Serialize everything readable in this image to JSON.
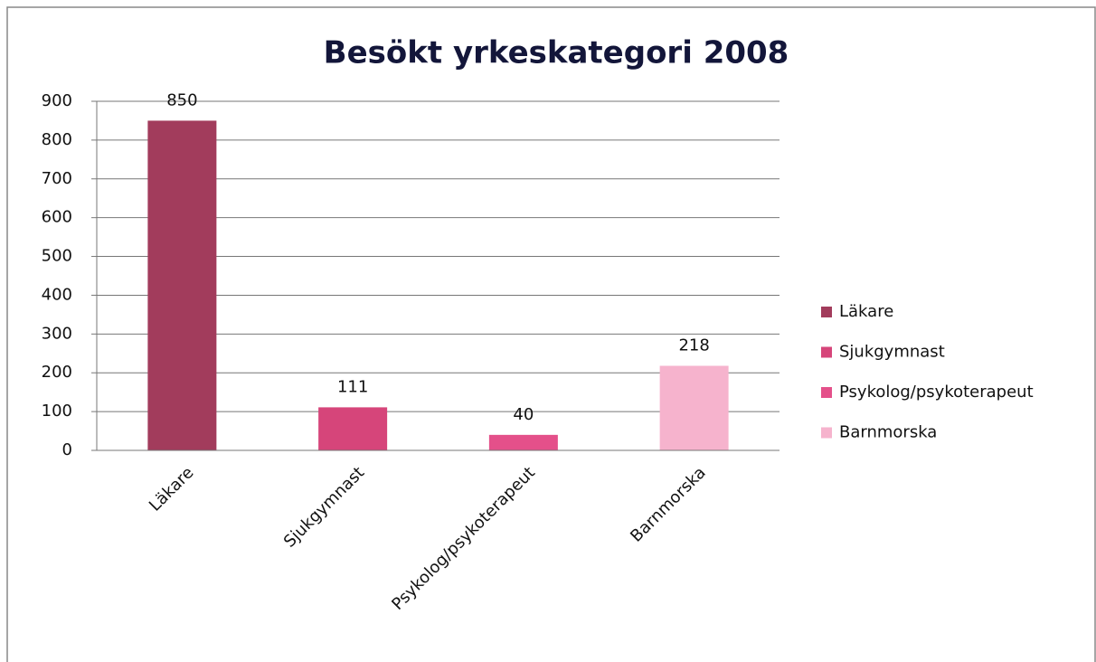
{
  "chart_data": {
    "type": "bar",
    "title": "Besökt yrkeskategori 2008",
    "categories": [
      "Läkare",
      "Sjukgymnast",
      "Psykolog/psykoterapeut",
      "Barnmorska"
    ],
    "values": [
      850,
      111,
      40,
      218
    ],
    "colors": [
      "#a23c5c",
      "#d6457a",
      "#e4508a",
      "#f6b3cd"
    ],
    "ylim": [
      0,
      900
    ],
    "yticks": [
      0,
      100,
      200,
      300,
      400,
      500,
      600,
      700,
      800,
      900
    ],
    "grid": true,
    "legend": "right"
  }
}
